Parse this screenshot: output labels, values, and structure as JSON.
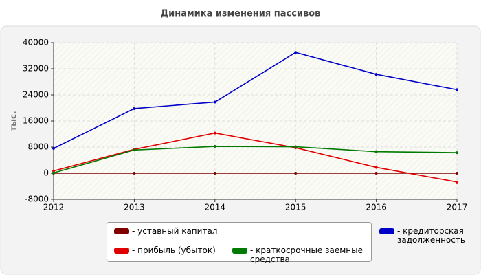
{
  "chart_data": {
    "type": "line",
    "title": "Динамика изменения пассивов",
    "y_label": "тыс.",
    "x": [
      2012,
      2013,
      2014,
      2015,
      2016,
      2017
    ],
    "xlim": [
      2012,
      2017
    ],
    "xticks": [
      2012,
      2013,
      2014,
      2015,
      2016,
      2017
    ],
    "ylim": [
      -8000,
      40000
    ],
    "yticks": [
      -8000,
      0,
      8000,
      16000,
      24000,
      32000,
      40000
    ],
    "grid": true,
    "series": [
      {
        "name": "уставный капитал",
        "color": "#800000",
        "values": [
          10,
          10,
          10,
          10,
          10,
          10
        ]
      },
      {
        "name": "прибыль (убыток)",
        "color": "#e00000",
        "values": [
          700,
          7300,
          12300,
          7800,
          1800,
          -2700
        ]
      },
      {
        "name": "краткосрочные заемные средства",
        "color": "#007a00",
        "values": [
          100,
          7100,
          8200,
          8100,
          6600,
          6300
        ]
      },
      {
        "name": "кредиторская задолженность",
        "color": "#0000c8",
        "values": [
          7600,
          19800,
          21800,
          37000,
          30300,
          25600
        ]
      }
    ]
  }
}
